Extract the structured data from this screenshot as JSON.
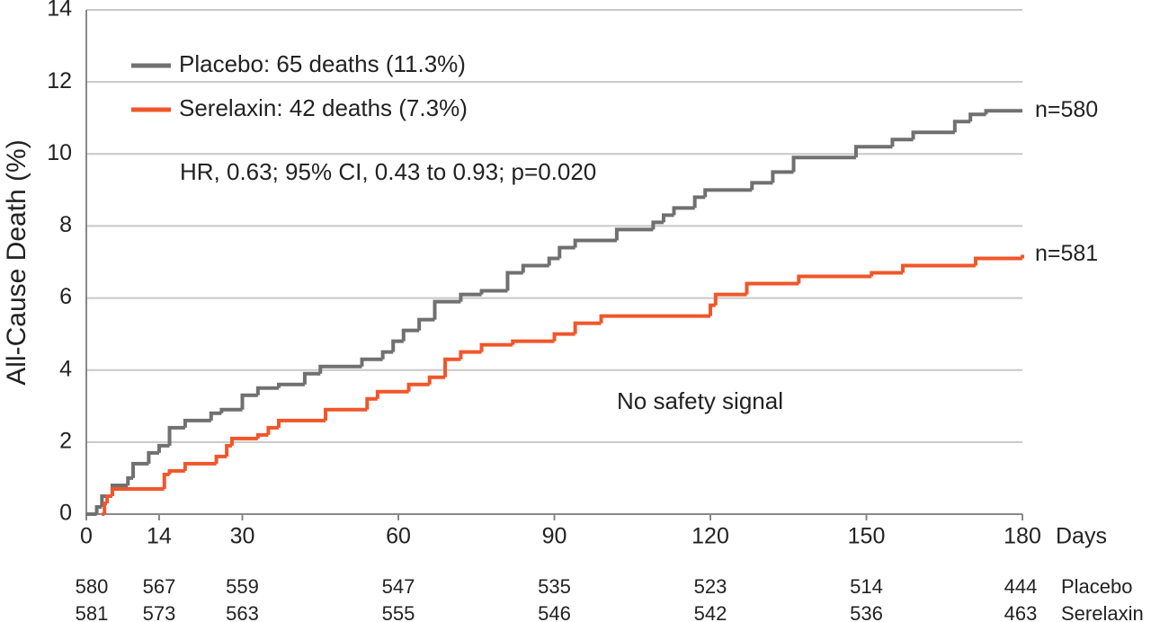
{
  "chart_data": {
    "type": "step",
    "y_label": "All-Cause Death (%)",
    "x_label": "Days",
    "xlim": [
      0,
      180
    ],
    "xticks": [
      0,
      14,
      30,
      60,
      90,
      120,
      150,
      180
    ],
    "ylim": [
      0,
      14
    ],
    "yticks": [
      0,
      2,
      4,
      6,
      8,
      10,
      12,
      14
    ],
    "grid": true,
    "legend": "top-left",
    "series": [
      {
        "name": "Placebo: 65 deaths (11.3%)",
        "color": "#707070",
        "end_label": "n=580",
        "x": [
          0,
          2,
          3,
          5,
          8,
          9,
          12,
          14,
          16,
          19,
          24,
          26,
          30,
          33,
          37,
          42,
          45,
          53,
          57,
          59,
          61,
          64,
          67,
          72,
          76,
          81,
          84,
          89,
          91,
          94,
          102,
          109,
          111,
          113,
          117,
          119,
          128,
          132,
          136,
          148,
          155,
          159,
          167,
          170,
          173,
          180
        ],
        "values": [
          0,
          0.2,
          0.5,
          0.8,
          1.0,
          1.4,
          1.7,
          1.9,
          2.4,
          2.6,
          2.8,
          2.9,
          3.3,
          3.5,
          3.6,
          3.9,
          4.1,
          4.3,
          4.5,
          4.8,
          5.1,
          5.4,
          5.9,
          6.1,
          6.2,
          6.7,
          6.9,
          7.1,
          7.4,
          7.6,
          7.9,
          8.1,
          8.3,
          8.5,
          8.8,
          9.0,
          9.2,
          9.5,
          9.9,
          10.2,
          10.4,
          10.6,
          10.9,
          11.1,
          11.2,
          11.2
        ]
      },
      {
        "name": "Serelaxin: 42 deaths (7.3%)",
        "color": "#f0562a",
        "end_label": "n=581",
        "x": [
          3,
          3.5,
          4,
          5,
          15,
          16,
          19,
          25,
          27,
          28,
          33,
          35,
          37,
          46,
          54,
          56,
          62,
          66,
          69,
          72,
          76,
          82,
          90,
          94,
          99,
          120,
          121,
          127,
          137,
          151,
          157,
          171,
          180
        ],
        "values": [
          0,
          0.3,
          0.5,
          0.7,
          1.1,
          1.2,
          1.4,
          1.6,
          1.9,
          2.1,
          2.2,
          2.4,
          2.6,
          2.9,
          3.2,
          3.4,
          3.6,
          3.8,
          4.3,
          4.5,
          4.7,
          4.8,
          5.0,
          5.3,
          5.5,
          5.8,
          6.1,
          6.4,
          6.6,
          6.7,
          6.9,
          7.1,
          7.2
        ]
      }
    ],
    "annotations": [
      "HR, 0.63; 95% CI, 0.43 to 0.93; p=0.020",
      "No safety signal"
    ],
    "at_risk": [
      {
        "name": "Placebo",
        "values": [
          580,
          567,
          559,
          547,
          535,
          523,
          514,
          444
        ]
      },
      {
        "name": "Serelaxin",
        "values": [
          581,
          573,
          563,
          555,
          546,
          542,
          536,
          463
        ]
      }
    ]
  }
}
